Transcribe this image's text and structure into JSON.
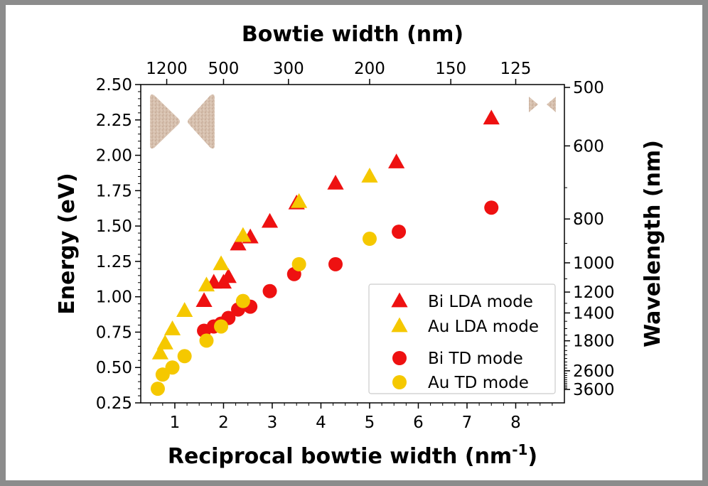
{
  "chart_data": {
    "type": "scatter",
    "top_axis": {
      "label": "Bowtie width (nm)",
      "ticks": [
        {
          "label": "1200",
          "value": 1200
        },
        {
          "label": "500",
          "value": 500
        },
        {
          "label": "300",
          "value": 300
        },
        {
          "label": "200",
          "value": 200
        },
        {
          "label": "150",
          "value": 150
        },
        {
          "label": "125",
          "value": 125
        }
      ]
    },
    "x_axis": {
      "label": "Reciprocal bowtie width (nm",
      "label_sup": "-1",
      "label_end": ")",
      "ticks": [
        1,
        2,
        3,
        4,
        5,
        6,
        7,
        8
      ],
      "range": [
        0.3,
        9.0
      ]
    },
    "y_axis": {
      "label": "Energy (eV)",
      "ticks": [
        "0.25",
        "0.50",
        "0.75",
        "1.00",
        "1.25",
        "1.50",
        "1.75",
        "2.00",
        "2.25",
        "2.50"
      ],
      "range": [
        0.25,
        2.5
      ]
    },
    "right_axis": {
      "label": "Wavelength (nm)",
      "ticks": [
        500,
        600,
        800,
        1000,
        1200,
        1400,
        1800,
        2600,
        3600
      ]
    },
    "series": [
      {
        "name": "Bi LDA mode",
        "marker": "triangle",
        "color": "#ee1111",
        "points": [
          [
            1.6,
            0.97
          ],
          [
            1.8,
            1.1
          ],
          [
            2.0,
            1.1
          ],
          [
            2.1,
            1.14
          ],
          [
            2.3,
            1.37
          ],
          [
            2.55,
            1.42
          ],
          [
            2.95,
            1.53
          ],
          [
            3.5,
            1.66
          ],
          [
            4.3,
            1.8
          ],
          [
            5.55,
            1.95
          ],
          [
            7.5,
            2.26
          ]
        ]
      },
      {
        "name": "Au LDA mode",
        "marker": "triangle",
        "color": "#f5c800",
        "points": [
          [
            0.7,
            0.6
          ],
          [
            0.8,
            0.67
          ],
          [
            0.95,
            0.77
          ],
          [
            1.2,
            0.9
          ],
          [
            1.65,
            1.08
          ],
          [
            1.95,
            1.23
          ],
          [
            2.4,
            1.43
          ],
          [
            3.55,
            1.67
          ],
          [
            5.0,
            1.85
          ]
        ]
      },
      {
        "name": "Bi TD mode",
        "marker": "circle",
        "color": "#ee1111",
        "points": [
          [
            1.6,
            0.76
          ],
          [
            1.8,
            0.79
          ],
          [
            1.95,
            0.81
          ],
          [
            2.1,
            0.85
          ],
          [
            2.3,
            0.91
          ],
          [
            2.55,
            0.93
          ],
          [
            2.95,
            1.04
          ],
          [
            3.45,
            1.16
          ],
          [
            4.3,
            1.23
          ],
          [
            5.6,
            1.46
          ],
          [
            7.5,
            1.63
          ]
        ]
      },
      {
        "name": "Au TD mode",
        "marker": "circle",
        "color": "#f5c800",
        "points": [
          [
            0.65,
            0.35
          ],
          [
            0.75,
            0.45
          ],
          [
            0.95,
            0.5
          ],
          [
            1.2,
            0.58
          ],
          [
            1.65,
            0.69
          ],
          [
            1.95,
            0.79
          ],
          [
            2.4,
            0.97
          ],
          [
            3.55,
            1.23
          ],
          [
            5.0,
            1.41
          ]
        ]
      }
    ],
    "legend_position": "lower-right",
    "grid": false
  }
}
